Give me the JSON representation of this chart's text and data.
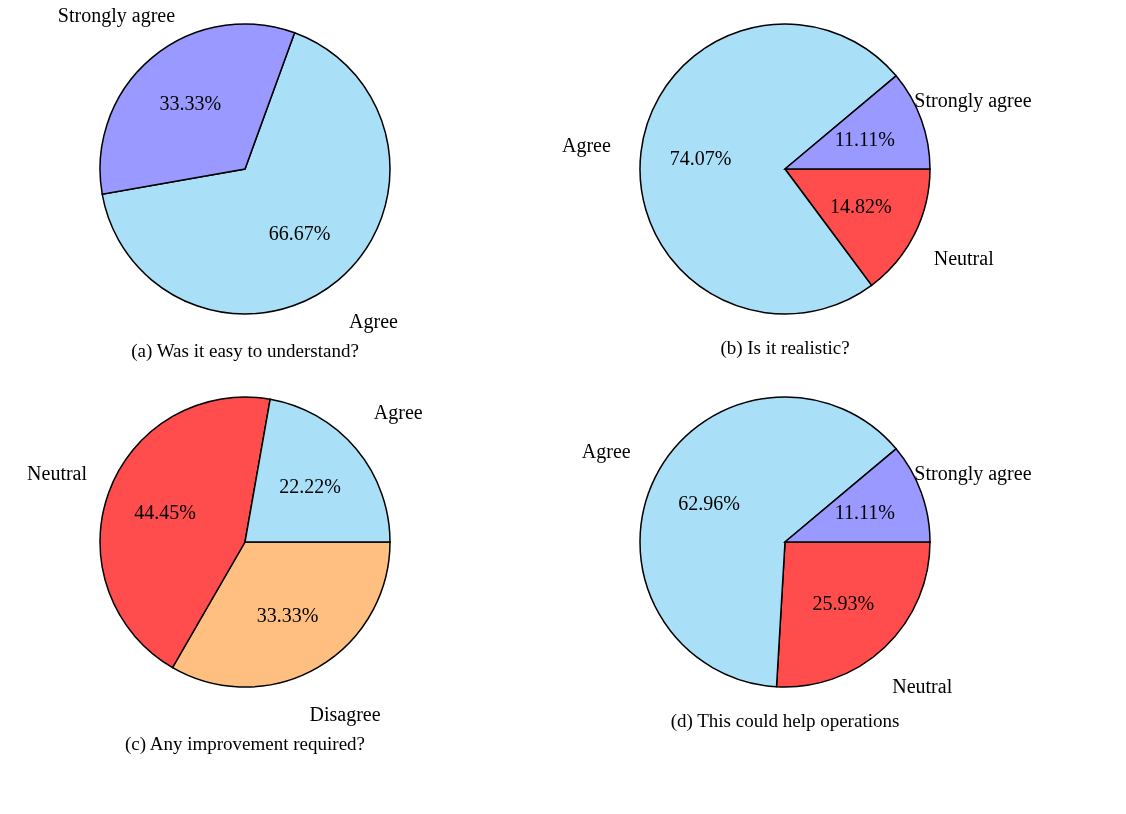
{
  "chart_data": [
    {
      "type": "pie",
      "title": "(a) Was it easy to understand?",
      "categories": [
        "Agree",
        "Strongly agree"
      ],
      "values": [
        66.67,
        33.33
      ],
      "colors": [
        "#aadff8",
        "#9999ff"
      ],
      "value_labels": [
        "66.67%",
        "33.33%"
      ]
    },
    {
      "type": "pie",
      "title": "(b) Is it realistic?",
      "categories": [
        "Neutral",
        "Agree",
        "Strongly agree"
      ],
      "values": [
        14.82,
        74.07,
        11.11
      ],
      "colors": [
        "#ff4c4c",
        "#aadff8",
        "#9999ff"
      ],
      "value_labels": [
        "14.82%",
        "74.07%",
        "11.11%"
      ]
    },
    {
      "type": "pie",
      "title": "(c) Any improvement required?",
      "categories": [
        "Disagree",
        "Neutral",
        "Agree"
      ],
      "values": [
        33.33,
        44.45,
        22.22
      ],
      "colors": [
        "#ffbf80",
        "#ff4c4c",
        "#aadff8"
      ],
      "value_labels": [
        "33.33%",
        "44.45%",
        "22.22%"
      ]
    },
    {
      "type": "pie",
      "title": "(d) This could help operations",
      "categories": [
        "Neutral",
        "Agree",
        "Strongly agree"
      ],
      "values": [
        25.93,
        62.96,
        11.11
      ],
      "colors": [
        "#ff4c4c",
        "#aadff8",
        "#9999ff"
      ],
      "value_labels": [
        "25.93%",
        "62.96%",
        "11.11%"
      ]
    }
  ]
}
